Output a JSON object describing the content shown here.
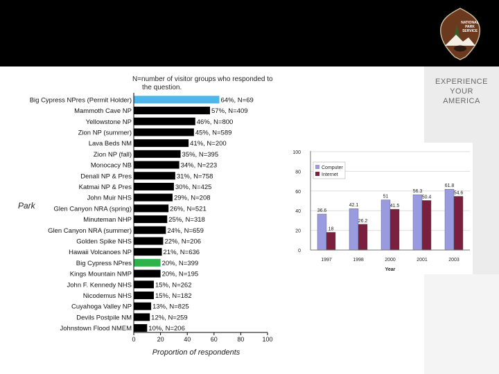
{
  "branding": {
    "logo_lines": [
      "NATIONAL",
      "PARK",
      "SERVICE"
    ],
    "tagline": [
      "EXPERIENCE",
      "YOUR",
      "AMERICA"
    ],
    "colors": {
      "header": "#000000",
      "arrowhead": "#6b3a1e",
      "panel": "#ececec"
    }
  },
  "chart_data": [
    {
      "type": "bar",
      "orientation": "horizontal",
      "note_line1": "N=number of visitor groups who responded to",
      "note_line2": "the question.",
      "ylabel": "Park",
      "xlabel": "Proportion of respondents",
      "xlim": [
        0,
        100
      ],
      "xticks": [
        "0",
        "20",
        "40",
        "60",
        "80",
        "100"
      ],
      "highlight_colors": {
        "default": "#000000",
        "Big Cypress NPres (Permit Holder)": "#4fb7e8",
        "Big Cypress NPres": "#2eb24a"
      },
      "bars": [
        {
          "category": "Big Cypress NPres (Permit Holder)",
          "value": 64,
          "label": "64%, N=69"
        },
        {
          "category": "Mammoth Cave NP",
          "value": 57,
          "label": "57%, N=409"
        },
        {
          "category": "Yellowstone NP",
          "value": 46,
          "label": "46%, N=800"
        },
        {
          "category": "Zion NP (summer)",
          "value": 45,
          "label": "45%, N=589"
        },
        {
          "category": "Lava Beds NM",
          "value": 41,
          "label": "41%, N=200"
        },
        {
          "category": "Zion NP (fall)",
          "value": 35,
          "label": "35%, N=395"
        },
        {
          "category": "Monocacy NB",
          "value": 34,
          "label": "34%, N=223"
        },
        {
          "category": "Denali NP & Pres",
          "value": 31,
          "label": "31%, N=758"
        },
        {
          "category": "Katmai NP & Pres",
          "value": 30,
          "label": "30%, N=425"
        },
        {
          "category": "John Muir NHS",
          "value": 29,
          "label": "29%, N=208"
        },
        {
          "category": "Glen Canyon NRA (spring)",
          "value": 26,
          "label": "26%, N=521"
        },
        {
          "category": "Minuteman NHP",
          "value": 25,
          "label": "25%, N=318"
        },
        {
          "category": "Glen Canyon NRA (summer)",
          "value": 24,
          "label": "24%, N=659"
        },
        {
          "category": "Golden Spike NHS",
          "value": 22,
          "label": "22%, N=206"
        },
        {
          "category": "Hawaii Volcanoes NP",
          "value": 21,
          "label": "21%, N=636"
        },
        {
          "category": "Big Cypress NPres",
          "value": 20,
          "label": "20%, N=399"
        },
        {
          "category": "Kings Mountain NMP",
          "value": 20,
          "label": "20%, N=195"
        },
        {
          "category": "John F. Kennedy NHS",
          "value": 15,
          "label": "15%, N=262"
        },
        {
          "category": "Nicodemus NHS",
          "value": 15,
          "label": "15%, N=182"
        },
        {
          "category": "Cuyahoga Valley NP",
          "value": 13,
          "label": "13%, N=825"
        },
        {
          "category": "Devils Postpile NM",
          "value": 12,
          "label": "12%, N=259"
        },
        {
          "category": "Johnstown Flood NMEM",
          "value": 10,
          "label": "10%, N=206"
        }
      ]
    },
    {
      "type": "bar",
      "xlabel": "Year",
      "ylim": [
        0,
        100
      ],
      "yticks": [
        "0",
        "20",
        "40",
        "60",
        "80",
        "100"
      ],
      "categories": [
        "1997",
        "1998",
        "2000",
        "2001",
        "2003"
      ],
      "series": [
        {
          "name": "Computer",
          "color": "#9a9ae0",
          "values": [
            36.6,
            42.1,
            51,
            56.3,
            61.8
          ],
          "labels": [
            "36.6",
            "42.1",
            "51",
            "56.3",
            "61.8"
          ]
        },
        {
          "name": "Internet",
          "color": "#7a1f3d",
          "values": [
            18,
            26.2,
            41.5,
            50.4,
            54.6
          ],
          "labels": [
            "18",
            "26.2",
            "41.5",
            "50.4",
            "54.6"
          ]
        }
      ]
    }
  ]
}
